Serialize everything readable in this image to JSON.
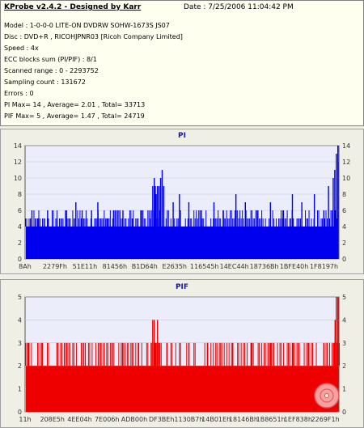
{
  "header": {
    "title": "KProbe v2.4.2 - Designed by Karr",
    "date": "Date : 7/25/2006 11:04:42 PM",
    "lines": [
      "Model : 1-0-0-0 LITE-ON DVDRW SOHW-1673S JS07",
      "Disc : DVD+R , RICOHJPNR03 [Ricoh Company Limited]",
      "Speed : 4x",
      "ECC blocks sum (PI/PIF) : 8/1",
      "Scanned range : 0 - 2293752",
      "Sampling count : 131672",
      "Errors : 0",
      "PI Max= 14 , Average= 2.01 , Total= 33713",
      "PIF Max= 5 , Average= 1.47 , Total= 24719"
    ]
  },
  "colors": {
    "pi": "#0000ee",
    "pif": "#ee0000",
    "plot_bg": "#ecedfa"
  },
  "chart_data": [
    {
      "type": "bar",
      "title": "PI",
      "ylim": [
        0,
        14
      ],
      "yticks": [
        0,
        2,
        4,
        6,
        8,
        10,
        12,
        14
      ],
      "xticks": [
        "8Ah",
        "2279Fh",
        "51E11h",
        "81456h",
        "B1D64h",
        "E2635h",
        "116545h",
        "14EC44h",
        "18736Bh",
        "1BFE40h",
        "1F8197h"
      ],
      "base_level": 4,
      "values": [
        [
          0.02,
          6
        ],
        [
          0.04,
          5
        ],
        [
          0.07,
          6
        ],
        [
          0.1,
          5
        ],
        [
          0.13,
          6
        ],
        [
          0.16,
          7
        ],
        [
          0.18,
          6
        ],
        [
          0.21,
          6
        ],
        [
          0.23,
          7
        ],
        [
          0.26,
          5
        ],
        [
          0.28,
          6
        ],
        [
          0.31,
          6
        ],
        [
          0.34,
          5
        ],
        [
          0.37,
          6
        ],
        [
          0.4,
          6
        ],
        [
          0.41,
          5
        ],
        [
          0.405,
          9
        ],
        [
          0.41,
          10
        ],
        [
          0.413,
          9
        ],
        [
          0.416,
          8
        ],
        [
          0.42,
          9
        ],
        [
          0.425,
          9
        ],
        [
          0.43,
          10
        ],
        [
          0.435,
          11
        ],
        [
          0.44,
          9
        ],
        [
          0.47,
          7
        ],
        [
          0.49,
          8
        ],
        [
          0.52,
          7
        ],
        [
          0.56,
          6
        ],
        [
          0.6,
          7
        ],
        [
          0.63,
          6
        ],
        [
          0.67,
          8
        ],
        [
          0.7,
          7
        ],
        [
          0.74,
          6
        ],
        [
          0.78,
          7
        ],
        [
          0.82,
          6
        ],
        [
          0.85,
          8
        ],
        [
          0.88,
          7
        ],
        [
          0.92,
          8
        ],
        [
          0.95,
          6
        ],
        [
          0.965,
          9
        ],
        [
          0.98,
          10
        ],
        [
          0.985,
          11
        ],
        [
          0.99,
          13
        ],
        [
          0.995,
          14
        ],
        [
          1.0,
          12
        ]
      ]
    },
    {
      "type": "bar",
      "title": "PIF",
      "ylim": [
        0,
        5
      ],
      "yticks": [
        0,
        1,
        2,
        3,
        4,
        5
      ],
      "xticks": [
        "11h",
        "208E5h",
        "4EE04h",
        "7E006h",
        "ADB00h",
        "DF3BEh",
        "1130B7h",
        "14B01Eh",
        "18146Bh",
        "1B8651h",
        "1EF838h",
        "2269F1h"
      ],
      "base_level": 2,
      "values": [
        [
          0.01,
          3
        ],
        [
          0.05,
          3
        ],
        [
          0.1,
          3
        ],
        [
          0.14,
          3
        ],
        [
          0.19,
          3
        ],
        [
          0.25,
          3
        ],
        [
          0.31,
          3
        ],
        [
          0.36,
          3
        ],
        [
          0.4,
          3
        ],
        [
          0.405,
          4
        ],
        [
          0.41,
          4
        ],
        [
          0.415,
          3
        ],
        [
          0.42,
          4
        ],
        [
          0.425,
          3
        ],
        [
          0.45,
          3
        ],
        [
          0.52,
          3
        ],
        [
          0.58,
          3
        ],
        [
          0.66,
          3
        ],
        [
          0.72,
          3
        ],
        [
          0.78,
          3
        ],
        [
          0.85,
          3
        ],
        [
          0.9,
          3
        ],
        [
          0.95,
          3
        ],
        [
          0.982,
          3
        ],
        [
          0.986,
          4
        ],
        [
          0.99,
          5
        ],
        [
          0.995,
          5
        ],
        [
          1.0,
          5
        ]
      ]
    }
  ]
}
